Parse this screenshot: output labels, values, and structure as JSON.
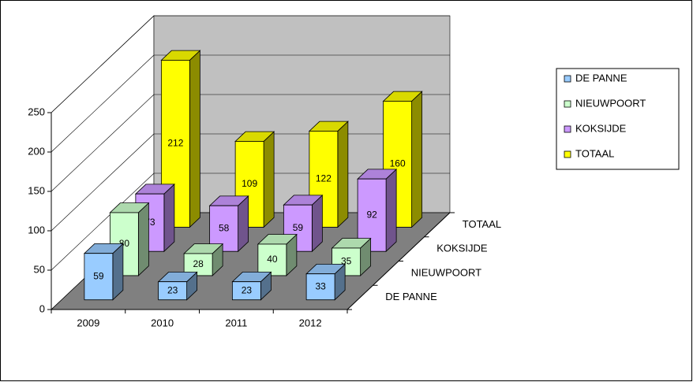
{
  "chart_data": {
    "type": "bar",
    "categories": [
      "2009",
      "2010",
      "2011",
      "2012"
    ],
    "series": [
      {
        "name": "DE PANNE",
        "color": "#99ccff",
        "values": [
          59,
          23,
          23,
          33
        ]
      },
      {
        "name": "NIEUWPOORT",
        "color": "#ccffcc",
        "values": [
          80,
          28,
          40,
          35
        ]
      },
      {
        "name": "KOKSIJDE",
        "color": "#cc99ff",
        "values": [
          73,
          58,
          59,
          92
        ]
      },
      {
        "name": "TOTAAL",
        "color": "#ffff00",
        "values": [
          212,
          109,
          122,
          160
        ]
      }
    ],
    "ylim": [
      0,
      250
    ],
    "yticks": [
      0,
      50,
      100,
      150,
      200,
      250
    ],
    "grid": true,
    "legend": "right"
  }
}
